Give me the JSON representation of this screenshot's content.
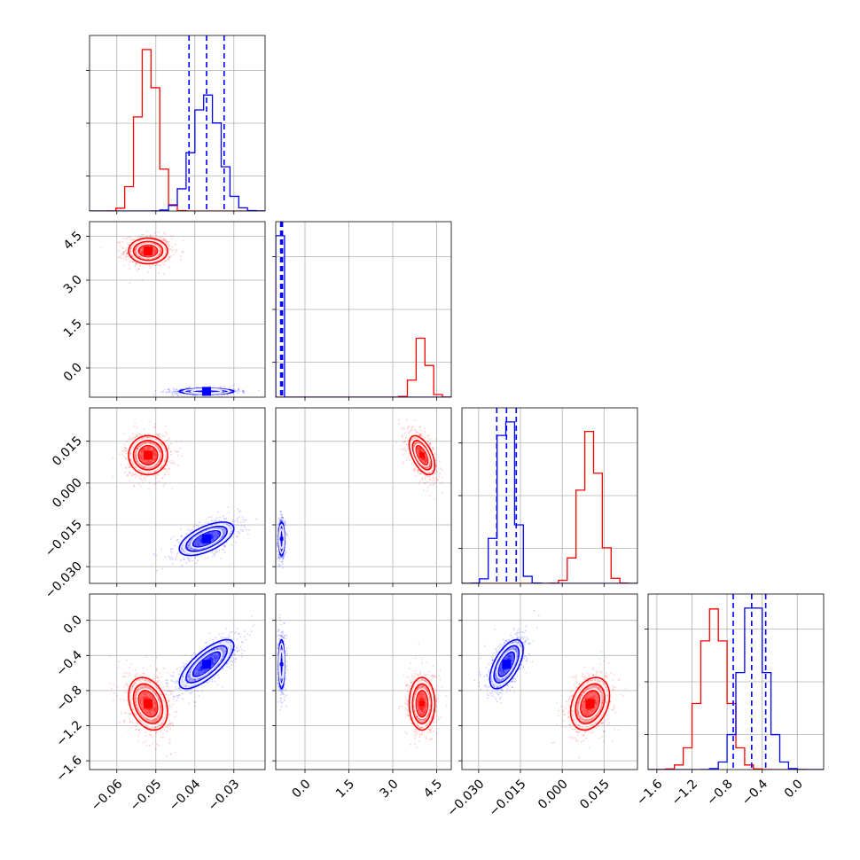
{
  "chart_data": {
    "type": "corner",
    "parameters": [
      {
        "range": [
          -0.067,
          -0.022
        ],
        "ticks": [
          -0.06,
          -0.05,
          -0.04,
          -0.03
        ],
        "tick_labels": [
          "−0.06",
          "−0.05",
          "−0.04",
          "−0.03"
        ]
      },
      {
        "range": [
          -1.0,
          5.0
        ],
        "ticks": [
          0.0,
          1.5,
          3.0,
          4.5
        ],
        "tick_labels": [
          "0.0",
          "1.5",
          "3.0",
          "4.5"
        ]
      },
      {
        "range": [
          -0.036,
          0.027
        ],
        "ticks": [
          -0.03,
          -0.015,
          0.0,
          0.015
        ],
        "tick_labels": [
          "−0.030",
          "−0.015",
          "0.000",
          "0.015"
        ]
      },
      {
        "range": [
          -1.7,
          0.3
        ],
        "ticks": [
          -1.6,
          -1.2,
          -0.8,
          -0.4,
          0.0
        ],
        "tick_labels": [
          "−1.6",
          "−1.2",
          "−0.8",
          "−0.4",
          "0.0"
        ]
      }
    ],
    "series": [
      {
        "color": "#ff0000",
        "means": [
          -0.052,
          4.0,
          0.01,
          -0.95
        ],
        "sigmas": [
          0.0025,
          0.22,
          0.0035,
          0.15
        ],
        "correlations": {
          "0-1": 0.0,
          "0-2": 0.0,
          "0-3": -0.3,
          "1-2": -0.55,
          "1-3": 0.0,
          "2-3": 0.3
        }
      },
      {
        "color": "#0000ff",
        "means": [
          -0.037,
          -0.8,
          -0.02,
          -0.5
        ],
        "sigmas": [
          0.0035,
          0.05,
          0.003,
          0.14
        ],
        "correlations": {
          "0-1": 0.0,
          "0-2": 0.6,
          "0-3": 0.75,
          "1-2": 0.0,
          "1-3": 0.0,
          "2-3": 0.6
        }
      }
    ],
    "quantile_lines": {
      "color": "#0000ff",
      "values": [
        [
          -0.0415,
          -0.037,
          -0.0325
        ],
        [
          -0.83,
          -0.8,
          -0.77
        ],
        [
          -0.0235,
          -0.02,
          -0.0165
        ],
        [
          -0.73,
          -0.52,
          -0.36
        ]
      ]
    },
    "grid": true
  }
}
